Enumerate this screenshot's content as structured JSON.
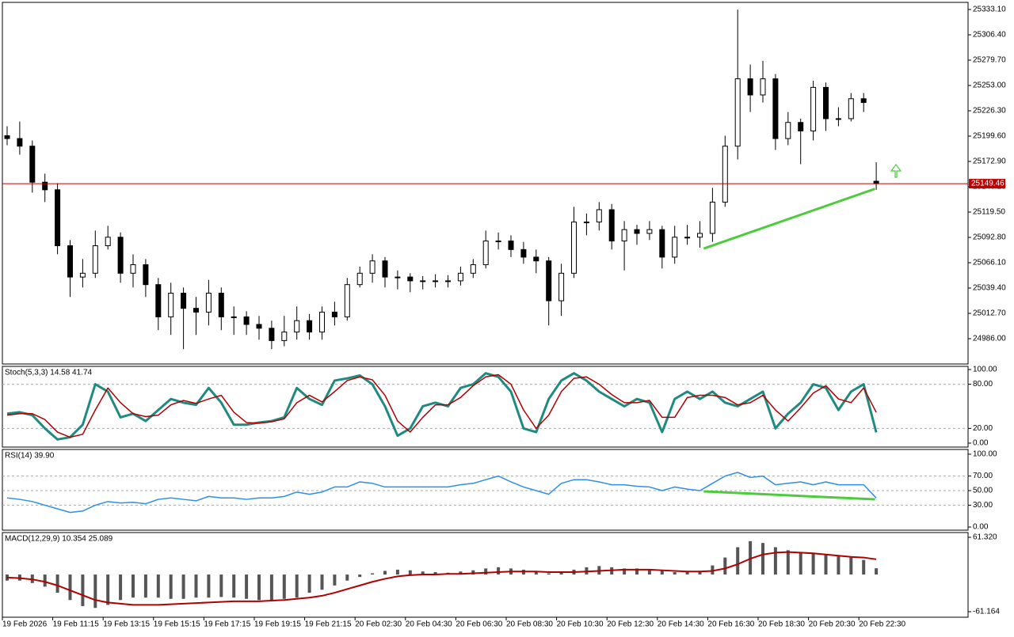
{
  "chart_data": {
    "type": "candlestick",
    "categories": [
      "19 Feb 2026",
      null,
      null,
      null,
      "19 Feb 11:15",
      null,
      null,
      null,
      "19 Feb 13:15",
      null,
      null,
      null,
      "19 Feb 15:15",
      null,
      null,
      null,
      "19 Feb 17:15",
      null,
      null,
      null,
      "19 Feb 19:15",
      null,
      null,
      null,
      "19 Feb 21:15",
      null,
      null,
      null,
      "20 Feb 02:30",
      null,
      null,
      null,
      "20 Feb 04:30",
      null,
      null,
      null,
      "20 Feb 06:30",
      null,
      null,
      null,
      "20 Feb 08:30",
      null,
      null,
      null,
      "20 Feb 10:30",
      null,
      null,
      null,
      "20 Feb 12:30",
      null,
      null,
      null,
      "20 Feb 14:30",
      null,
      null,
      null,
      "20 Feb 16:30",
      null,
      null,
      null,
      "20 Feb 18:30",
      null,
      null,
      null,
      "20 Feb 20:30",
      null,
      null,
      null,
      "20 Feb 22:30",
      null
    ],
    "open": [
      25200,
      25197,
      25189,
      25151,
      25143,
      25084,
      25051,
      25055,
      25084,
      25093,
      25055,
      25064,
      25043,
      25009,
      25034,
      25018,
      25014,
      25034,
      25009,
      25009,
      25001,
      24997,
      24984,
      24993,
      25005,
      24993,
      25014,
      25009,
      25043,
      25055,
      25068,
      25051,
      25051,
      25047,
      25047,
      25047,
      25047,
      25055,
      25064,
      25089,
      25089,
      25080,
      25072,
      25068,
      25026,
      25055,
      25109,
      25109,
      25122,
      25089,
      25101,
      25097,
      25101,
      25072,
      25093,
      25093,
      25097,
      25130,
      25189,
      25260,
      25243,
      25260,
      25197,
      25214,
      25205,
      25251,
      25218,
      25218,
      25239,
      25152
    ],
    "high": [
      25210,
      25215,
      25195,
      25160,
      25150,
      25090,
      25070,
      25100,
      25105,
      25098,
      25075,
      25070,
      25050,
      25045,
      25040,
      25030,
      25048,
      25040,
      25020,
      25015,
      25010,
      25005,
      25010,
      25020,
      25012,
      25020,
      25025,
      25050,
      25062,
      25075,
      25072,
      25058,
      25055,
      25052,
      25054,
      25053,
      25062,
      25070,
      25100,
      25098,
      25095,
      25088,
      25080,
      25072,
      25065,
      25125,
      25118,
      25130,
      25128,
      25110,
      25106,
      25110,
      25105,
      25105,
      25106,
      25110,
      25145,
      25200,
      25333,
      25275,
      25279,
      25265,
      25225,
      25218,
      25258,
      25256,
      25230,
      25245,
      25245,
      25172
    ],
    "low": [
      25190,
      25180,
      25140,
      25130,
      25075,
      25030,
      25040,
      25050,
      25080,
      25045,
      25040,
      25030,
      24995,
      24990,
      24975,
      24990,
      25000,
      24995,
      24990,
      24990,
      24985,
      24975,
      24978,
      24985,
      24985,
      24985,
      25000,
      25005,
      25040,
      25045,
      25040,
      25038,
      25035,
      25038,
      25040,
      25040,
      25042,
      25050,
      25060,
      25080,
      25072,
      25065,
      25055,
      25000,
      25010,
      25050,
      25095,
      25100,
      25080,
      25058,
      25085,
      25090,
      25060,
      25065,
      25085,
      25082,
      25088,
      25125,
      25175,
      25225,
      25235,
      25185,
      25190,
      25170,
      25195,
      25205,
      25210,
      25215,
      25225,
      25143
    ],
    "close": [
      25197,
      25189,
      25151,
      25143,
      25084,
      25051,
      25055,
      25084,
      25093,
      25055,
      25064,
      25043,
      25009,
      25034,
      25018,
      25014,
      25034,
      25009,
      25009,
      25001,
      24997,
      24984,
      24993,
      25005,
      24993,
      25014,
      25009,
      25043,
      25055,
      25068,
      25051,
      25051,
      25047,
      25047,
      25047,
      25047,
      25055,
      25064,
      25089,
      25089,
      25080,
      25072,
      25068,
      25026,
      25055,
      25109,
      25109,
      25122,
      25089,
      25101,
      25097,
      25101,
      25072,
      25093,
      25093,
      25097,
      25130,
      25189,
      25260,
      25243,
      25260,
      25197,
      25214,
      25205,
      25251,
      25218,
      25218,
      25239,
      25235,
      25149.46
    ],
    "ylim": [
      24959.3,
      25340.6
    ],
    "yticks": [
      {
        "value": 25333.1,
        "label": "25333.10"
      },
      {
        "value": 25306.4,
        "label": "25306.40"
      },
      {
        "value": 25279.7,
        "label": "25279.70"
      },
      {
        "value": 25253,
        "label": "25253.00"
      },
      {
        "value": 25226.3,
        "label": "25226.30"
      },
      {
        "value": 25199.6,
        "label": "25199.60"
      },
      {
        "value": 25172.9,
        "label": "25172.90"
      },
      {
        "value": 25146.2,
        "label": "25146.20"
      },
      {
        "value": 25119.5,
        "label": "25119.50"
      },
      {
        "value": 25092.8,
        "label": "25092.80"
      },
      {
        "value": 25066.1,
        "label": "25066.10"
      },
      {
        "value": 25039.4,
        "label": "25039.40"
      },
      {
        "value": 25012.7,
        "label": "25012.70"
      },
      {
        "value": 24986,
        "label": "24986.00"
      }
    ],
    "current_price": 25149.46,
    "current_price_color": "#c00000",
    "trendline": {
      "color": "#4ccc3c",
      "values": [
        25081,
        25144
      ]
    },
    "panels": [
      {
        "type": "line",
        "label": "Stoch(5,3,3) 14.58 41.74",
        "ylim": [
          -5.4,
          104.3
        ],
        "grid": true,
        "yticks": [
          {
            "value": 100,
            "label": "100.00"
          },
          {
            "value": 80,
            "label": "80.00"
          },
          {
            "value": 20,
            "label": "20.00"
          },
          {
            "value": 0,
            "label": "0.00"
          }
        ],
        "series": [
          {
            "type": "line",
            "color": "#1f8a80",
            "width": 3,
            "values": [
              40,
              42,
              38,
              20,
              5,
              8,
              25,
              80,
              70,
              35,
              40,
              30,
              45,
              60,
              55,
              52,
              75,
              55,
              25,
              25,
              28,
              30,
              35,
              75,
              60,
              52,
              85,
              88,
              92,
              80,
              50,
              10,
              20,
              50,
              55,
              50,
              75,
              80,
              95,
              90,
              70,
              20,
              15,
              60,
              85,
              95,
              85,
              70,
              60,
              50,
              60,
              55,
              15,
              60,
              70,
              60,
              70,
              55,
              50,
              60,
              70,
              20,
              40,
              55,
              80,
              75,
              45,
              70,
              80,
              14.58
            ]
          },
          {
            "type": "line",
            "color": "#b00000",
            "width": 1.5,
            "values": [
              38,
              40,
              40,
              32,
              15,
              8,
              12,
              45,
              75,
              55,
              40,
              36,
              38,
              52,
              58,
              54,
              60,
              65,
              42,
              28,
              27,
              29,
              33,
              55,
              65,
              56,
              70,
              85,
              90,
              86,
              65,
              30,
              15,
              35,
              52,
              52,
              62,
              78,
              90,
              93,
              80,
              45,
              20,
              38,
              70,
              88,
              90,
              80,
              66,
              55,
              55,
              58,
              35,
              35,
              62,
              65,
              65,
              62,
              52,
              55,
              65,
              45,
              30,
              48,
              68,
              78,
              60,
              55,
              75,
              41.74
            ]
          }
        ]
      },
      {
        "type": "line",
        "label": "RSI(14) 39.90",
        "ylim": [
          -4.3,
          106.5
        ],
        "grid": true,
        "yticks": [
          {
            "value": 100,
            "label": "100.00"
          },
          {
            "value": 70,
            "label": "70.00"
          },
          {
            "value": 50,
            "label": "50.00"
          },
          {
            "value": 30,
            "label": "30.00"
          },
          {
            "value": 0,
            "label": "0.00"
          }
        ],
        "trendline": {
          "color": "#4ccc3c",
          "values": [
            48.9,
            38
          ]
        },
        "series": [
          {
            "type": "line",
            "color": "#2e8fe6",
            "width": 1.5,
            "values": [
              40,
              38,
              35,
              30,
              25,
              20,
              22,
              30,
              35,
              33,
              34,
              32,
              38,
              40,
              38,
              36,
              42,
              40,
              40,
              38,
              40,
              40,
              42,
              48,
              45,
              48,
              55,
              55,
              62,
              60,
              55,
              55,
              55,
              55,
              55,
              55,
              58,
              60,
              65,
              70,
              62,
              55,
              50,
              45,
              60,
              65,
              65,
              62,
              58,
              58,
              56,
              55,
              50,
              55,
              52,
              50,
              60,
              70,
              75,
              68,
              70,
              58,
              60,
              62,
              58,
              62,
              58,
              58,
              58,
              39.9
            ]
          }
        ]
      },
      {
        "type": "bar",
        "label": "MACD(12,29,9) 10.354 25.089",
        "ylim": [
          -70.29,
          69.14
        ],
        "grid": false,
        "yticks": [
          {
            "value": 61.32,
            "label": "61.320"
          },
          {
            "value": -61.164,
            "label": "-61.164"
          }
        ],
        "series": [
          {
            "type": "bar",
            "color": "#555555",
            "values": [
              -10,
              -10,
              -14,
              -20,
              -30,
              -42,
              -52,
              -55,
              -50,
              -42,
              -38,
              -38,
              -38,
              -40,
              -40,
              -38,
              -38,
              -37,
              -38,
              -40,
              -42,
              -42,
              -40,
              -38,
              -30,
              -25,
              -18,
              -10,
              -4,
              2,
              6,
              8,
              7,
              5,
              4,
              3,
              5,
              7,
              10,
              12,
              10,
              8,
              5,
              2,
              3,
              8,
              12,
              14,
              12,
              10,
              10,
              8,
              6,
              4,
              4,
              6,
              15,
              28,
              45,
              55,
              52,
              45,
              40,
              36,
              34,
              32,
              30,
              28,
              24,
              10.354
            ]
          },
          {
            "type": "line",
            "color": "#b00000",
            "width": 2,
            "values": [
              -5,
              -6,
              -8,
              -12,
              -18,
              -26,
              -34,
              -42,
              -46,
              -48,
              -50,
              -50,
              -50,
              -49,
              -48,
              -47,
              -46,
              -45,
              -44,
              -44,
              -44,
              -43,
              -42,
              -40,
              -38,
              -35,
              -30,
              -24,
              -18,
              -12,
              -7,
              -3,
              -1,
              0,
              0,
              1,
              1,
              2,
              3,
              4,
              5,
              5,
              5,
              4,
              4,
              4,
              5,
              6,
              7,
              8,
              8,
              8,
              7,
              6,
              5,
              5,
              6,
              10,
              17,
              26,
              33,
              36,
              37,
              36,
              35,
              33,
              31,
              29,
              28,
              25.089
            ]
          }
        ]
      }
    ]
  }
}
